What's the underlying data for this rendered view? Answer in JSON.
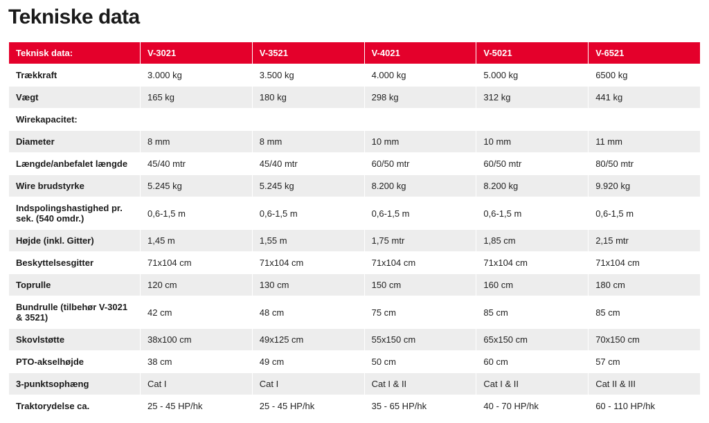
{
  "title": "Tekniske data",
  "table": {
    "header_bg": "#e4002b",
    "header_fg": "#ffffff",
    "row_odd_bg": "#ffffff",
    "row_even_bg": "#ededed",
    "columns": [
      "Teknisk data:",
      "V-3021",
      "V-3521",
      "V-4021",
      "V-5021",
      "V-6521"
    ],
    "rows": [
      {
        "label": "Trækkraft",
        "cells": [
          "3.000 kg",
          "3.500 kg",
          "4.000 kg",
          "5.000 kg",
          "6500 kg"
        ]
      },
      {
        "label": "Vægt",
        "cells": [
          "165 kg",
          "180 kg",
          "298 kg",
          "312 kg",
          "441 kg"
        ]
      },
      {
        "label": "Wirekapacitet:",
        "cells": [
          "",
          "",
          "",
          "",
          ""
        ]
      },
      {
        "label": "Diameter",
        "cells": [
          "8 mm",
          "8 mm",
          "10 mm",
          "10 mm",
          "11 mm"
        ]
      },
      {
        "label": "Længde/anbefalet længde",
        "cells": [
          "45/40 mtr",
          "45/40 mtr",
          "60/50 mtr",
          "60/50 mtr",
          "80/50 mtr"
        ]
      },
      {
        "label": "Wire brudstyrke",
        "cells": [
          "5.245 kg",
          "5.245 kg",
          "8.200 kg",
          "8.200 kg",
          "9.920 kg"
        ]
      },
      {
        "label": "Indspolingshastighed pr. sek. (540 omdr.)",
        "cells": [
          "0,6-1,5 m",
          "0,6-1,5 m",
          "0,6-1,5 m",
          "0,6-1,5 m",
          "0,6-1,5 m"
        ]
      },
      {
        "label": "Højde (inkl. Gitter)",
        "cells": [
          "1,45 m",
          "1,55 m",
          "1,75 mtr",
          "1,85 cm",
          "2,15 mtr"
        ]
      },
      {
        "label": "Beskyttelsesgitter",
        "cells": [
          "71x104 cm",
          "71x104 cm",
          "71x104 cm",
          "71x104 cm",
          "71x104 cm"
        ]
      },
      {
        "label": "Toprulle",
        "cells": [
          "120 cm",
          "130 cm",
          "150 cm",
          "160 cm",
          "180 cm"
        ]
      },
      {
        "label": "Bundrulle (tilbehør V-3021 & 3521)",
        "cells": [
          "42 cm",
          "48 cm",
          "75 cm",
          "85 cm",
          "85 cm"
        ]
      },
      {
        "label": "Skovlstøtte",
        "cells": [
          "38x100 cm",
          "49x125 cm",
          "55x150 cm",
          "65x150 cm",
          "70x150 cm"
        ]
      },
      {
        "label": "PTO-akselhøjde",
        "cells": [
          "38 cm",
          "49 cm",
          "50 cm",
          "60 cm",
          "57 cm"
        ]
      },
      {
        "label": "3-punktsophæng",
        "cells": [
          "Cat I",
          "Cat I",
          "Cat I & II",
          "Cat I & II",
          "Cat II & III"
        ]
      },
      {
        "label": "Traktorydelse ca.",
        "cells": [
          "25 - 45 HP/hk",
          "25 - 45 HP/hk",
          "35 - 65 HP/hk",
          "40 - 70 HP/hk",
          "60 - 110 HP/hk"
        ]
      }
    ]
  }
}
